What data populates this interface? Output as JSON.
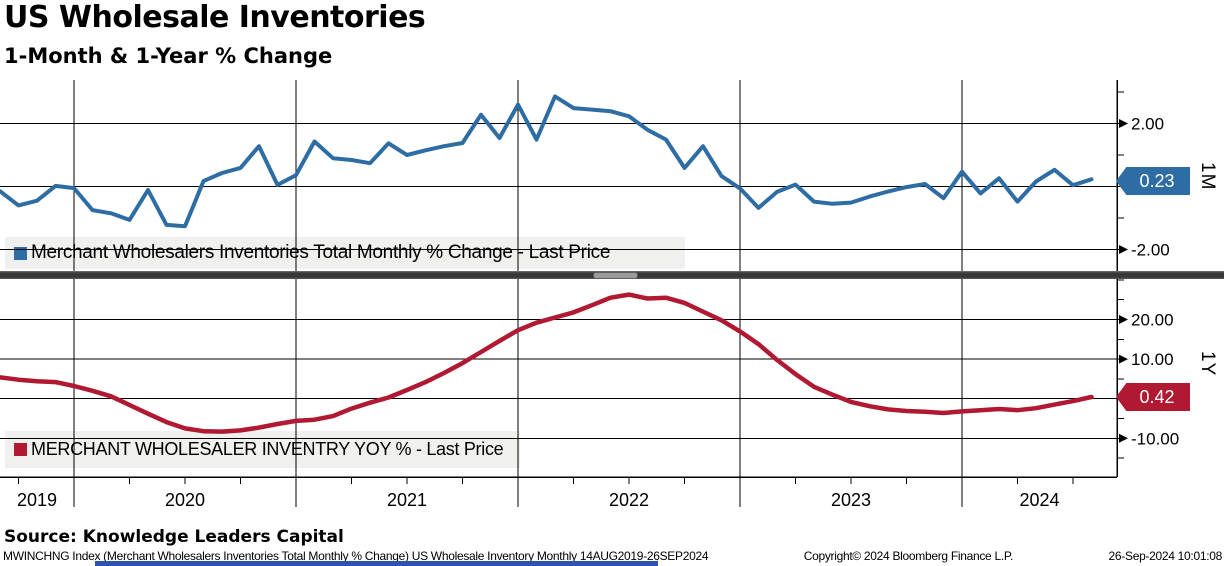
{
  "header": {
    "title": "US Wholesale Inventories",
    "subtitle": "1-Month & 1-Year % Change"
  },
  "source": {
    "label": "Source: Knowledge Leaders Capital"
  },
  "footer": {
    "instrument": "MWINCHNG Index (Merchant Wholesalers Inventories Total Monthly % Change) US Wholesale Inventory  Monthly 14AUG2019-26SEP2024",
    "copyright": "Copyright© 2024 Bloomberg Finance L.P.",
    "timestamp": "26-Sep-2024 10:01:08"
  },
  "colors": {
    "line_1m": "#2E6DA4",
    "line_1y": "#B01931",
    "grid": "#000000",
    "legend_bg": "#F0F0EE",
    "badge_1m_bg": "#2E6DA4",
    "badge_1y_bg": "#B01931",
    "badge_text": "#FFFFFF",
    "bottom_bar": "#2D54AD"
  },
  "x_axis": {
    "years": [
      "2019",
      "2020",
      "2021",
      "2022",
      "2023",
      "2024"
    ],
    "start": "Sep 2019",
    "end": "Aug 2024",
    "frequency": "monthly"
  },
  "chart_data": [
    {
      "panel": "1M",
      "type": "line",
      "legend": "Merchant Wholesalers Inventories Total Monthly % Change - Last Price",
      "axis_label": "1M",
      "last_price": "0.23",
      "ylim": [
        -2.7,
        3.4
      ],
      "gridlines": [
        2,
        0,
        -2
      ],
      "yticks_major": [
        {
          "v": 2,
          "label": "2.00"
        },
        {
          "v": -2,
          "label": "-2.00"
        }
      ],
      "yticks_minor": [
        3,
        1,
        0,
        -1
      ],
      "values": [
        -0.15,
        -0.6,
        -0.45,
        0.02,
        -0.05,
        -0.75,
        -0.85,
        -1.06,
        -0.11,
        -1.22,
        -1.26,
        0.17,
        0.43,
        0.59,
        1.28,
        0.05,
        0.36,
        1.43,
        0.9,
        0.84,
        0.74,
        1.37,
        1.0,
        1.15,
        1.28,
        1.38,
        2.28,
        1.54,
        2.6,
        1.49,
        2.86,
        2.49,
        2.44,
        2.39,
        2.23,
        1.8,
        1.49,
        0.59,
        1.28,
        0.33,
        -0.06,
        -0.68,
        -0.17,
        0.06,
        -0.48,
        -0.55,
        -0.51,
        -0.32,
        -0.16,
        -0.02,
        0.08,
        -0.37,
        0.47,
        -0.22,
        0.26,
        -0.48,
        0.16,
        0.53,
        0.04,
        0.23
      ]
    },
    {
      "panel": "1Y",
      "type": "line",
      "legend": "MERCHANT WHOLESALER INVENTRY YOY % - Last Price",
      "axis_label": "1Y",
      "last_price": "0.42",
      "ylim": [
        -19.8,
        30.3
      ],
      "gridlines": [
        20,
        10,
        0,
        -10
      ],
      "yticks_major": [
        {
          "v": 20,
          "label": "20.00"
        },
        {
          "v": 10,
          "label": "10.00"
        },
        {
          "v": -10,
          "label": "-10.00"
        }
      ],
      "yticks_minor": [
        30,
        25,
        15,
        5,
        0,
        -5,
        -15
      ],
      "values": [
        5.4,
        4.8,
        4.4,
        4.2,
        3.2,
        2.0,
        0.6,
        -1.6,
        -3.8,
        -5.9,
        -7.5,
        -8.2,
        -8.3,
        -8.0,
        -7.3,
        -6.4,
        -5.6,
        -5.3,
        -4.4,
        -2.5,
        -1.0,
        0.3,
        2.2,
        4.2,
        6.5,
        9.0,
        11.8,
        14.6,
        17.3,
        19.2,
        20.5,
        21.8,
        23.6,
        25.5,
        26.3,
        25.3,
        25.5,
        24.2,
        22.0,
        19.8,
        17.0,
        13.8,
        9.8,
        6.2,
        3.0,
        1.0,
        -0.8,
        -1.9,
        -2.7,
        -3.1,
        -3.3,
        -3.6,
        -3.2,
        -2.9,
        -2.6,
        -2.9,
        -2.4,
        -1.5,
        -0.6,
        0.42
      ]
    }
  ]
}
